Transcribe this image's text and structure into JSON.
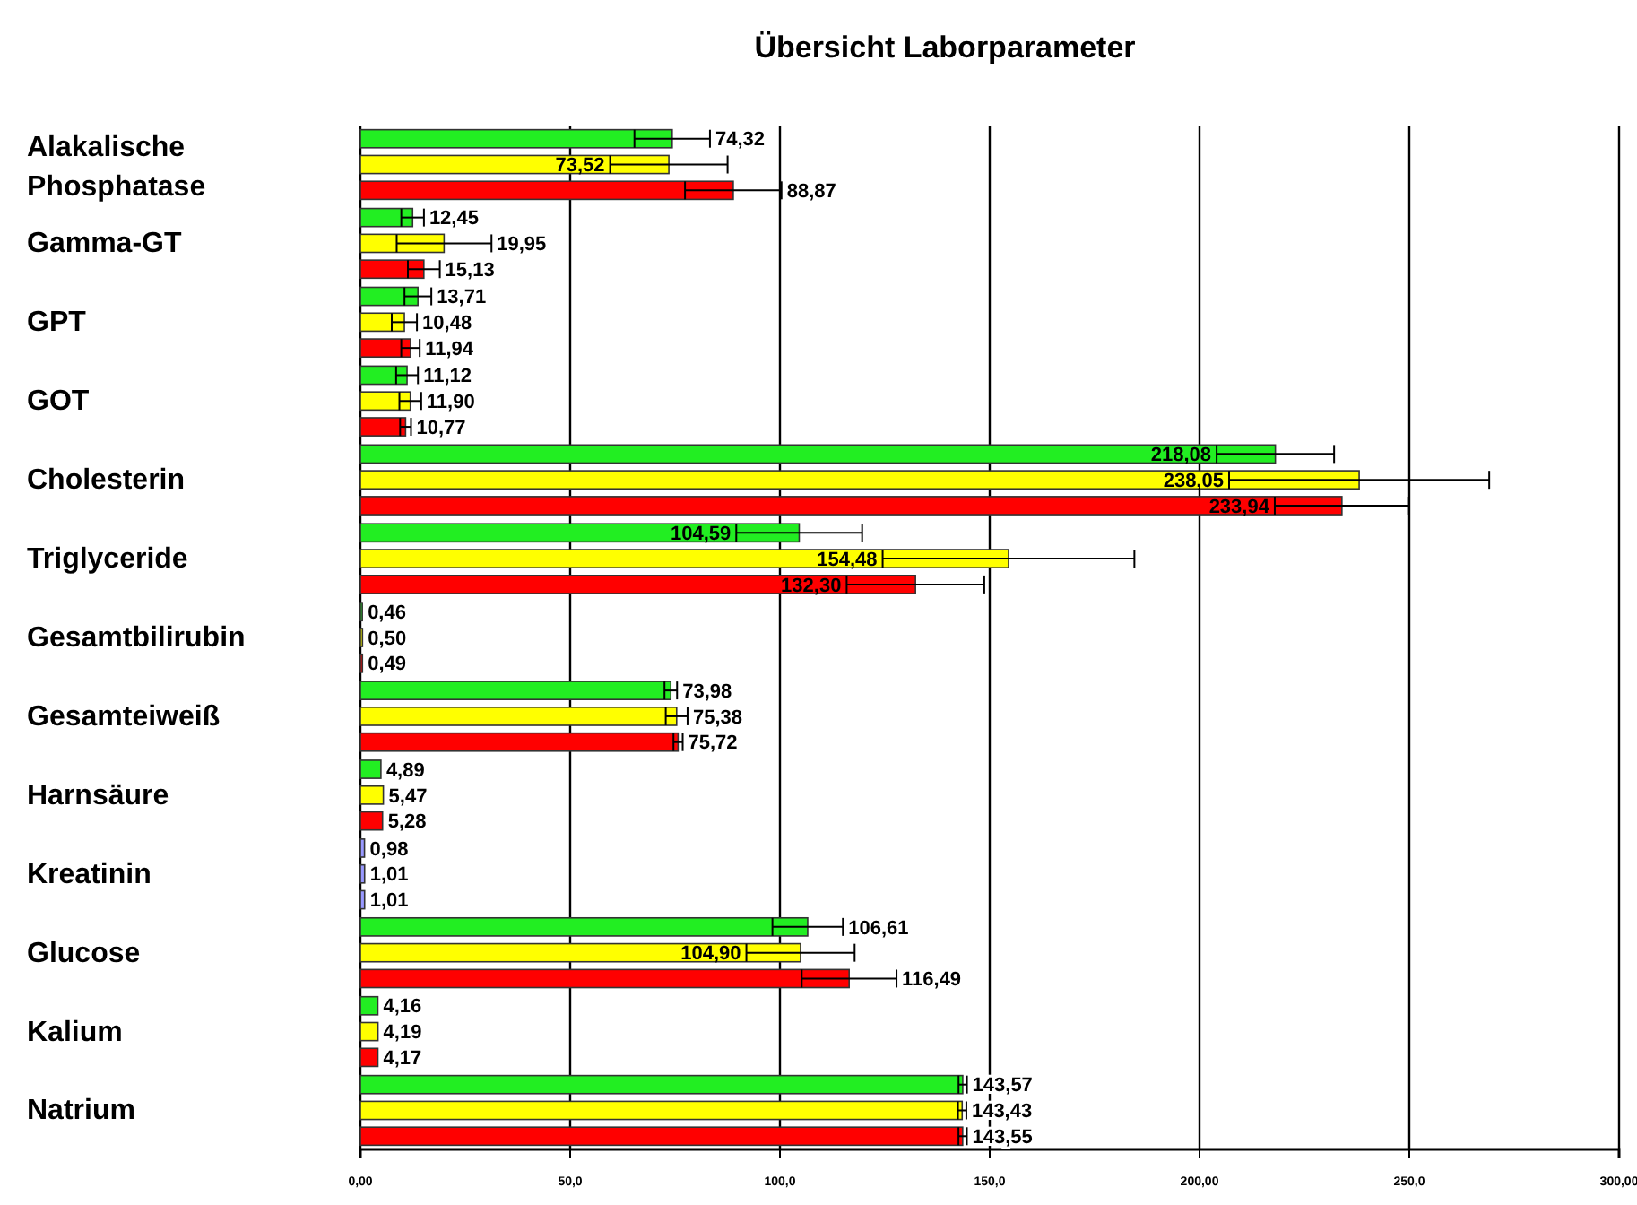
{
  "chart_data": {
    "type": "bar",
    "orientation": "horizontal",
    "title": "Übersicht Laborparameter",
    "categories": [
      "Alakalische Phosphatase",
      "Gamma-GT",
      "GPT",
      "GOT",
      "Cholesterin",
      "Triglyceride",
      "Gesamtbilirubin",
      "Gesamteiweiß",
      "Harnsäure",
      "Kreatinin",
      "Glucose",
      "Kalium",
      "Natrium"
    ],
    "series": [
      {
        "color": "#22ee22",
        "colors": [
          null,
          null,
          null,
          null,
          null,
          null,
          null,
          null,
          null,
          "#9999ff",
          null,
          null,
          null
        ],
        "values": [
          74.32,
          12.45,
          13.71,
          11.12,
          218.08,
          104.59,
          0.46,
          73.98,
          4.89,
          0.98,
          106.61,
          4.16,
          143.57
        ],
        "errors": [
          9,
          2.7,
          3.2,
          2.6,
          14,
          15,
          null,
          1.5,
          null,
          null,
          8.4,
          null,
          1
        ],
        "value_labels": [
          "74,32",
          "12,45",
          "13,71",
          "11,12",
          "218,08",
          "104,59",
          "0,46",
          "73,98",
          "4,89",
          "0,98",
          "106,61",
          "4,16",
          "143,57"
        ]
      },
      {
        "color": "#ffff00",
        "colors": [
          null,
          null,
          null,
          null,
          null,
          null,
          null,
          null,
          null,
          "#9999ff",
          null,
          null,
          null
        ],
        "values": [
          73.52,
          19.95,
          10.48,
          11.9,
          238.05,
          154.48,
          0.5,
          75.38,
          5.47,
          1.01,
          104.9,
          4.19,
          143.43
        ],
        "errors": [
          14,
          11.3,
          3,
          2.6,
          31,
          30,
          null,
          2.6,
          null,
          null,
          12.9,
          null,
          1
        ],
        "value_labels": [
          "73,52",
          "19,95",
          "10,48",
          "11,90",
          "238,05",
          "154,48",
          "0,50",
          "75,38",
          "5,47",
          "1,01",
          "104,90",
          "4,19",
          "143,43"
        ]
      },
      {
        "color": "#ff0000",
        "colors": [
          null,
          null,
          null,
          null,
          null,
          null,
          null,
          null,
          null,
          "#9999ff",
          null,
          null,
          null
        ],
        "values": [
          88.87,
          15.13,
          11.94,
          10.77,
          233.94,
          132.3,
          0.49,
          75.72,
          5.28,
          1.01,
          116.49,
          4.17,
          143.55
        ],
        "errors": [
          11.5,
          3.8,
          2.2,
          1.3,
          16,
          16.4,
          null,
          1.1,
          null,
          null,
          11.3,
          null,
          1
        ],
        "value_labels": [
          "88,87",
          "15,13",
          "11,94",
          "10,77",
          "233,94",
          "132,30",
          "0,49",
          "75,72",
          "5,28",
          "1,01",
          "116,49",
          "4,17",
          "143,55"
        ]
      }
    ],
    "xlim": [
      0,
      300
    ],
    "xticks": [
      {
        "value": 0,
        "label": "0,00"
      },
      {
        "value": 50,
        "label": "50,0"
      },
      {
        "value": 100,
        "label": "100,0"
      },
      {
        "value": 150,
        "label": "150,0"
      },
      {
        "value": 200,
        "label": "200,00"
      },
      {
        "value": 250,
        "label": "250,0"
      },
      {
        "value": 300,
        "label": "300,00"
      }
    ],
    "grid": "x"
  }
}
